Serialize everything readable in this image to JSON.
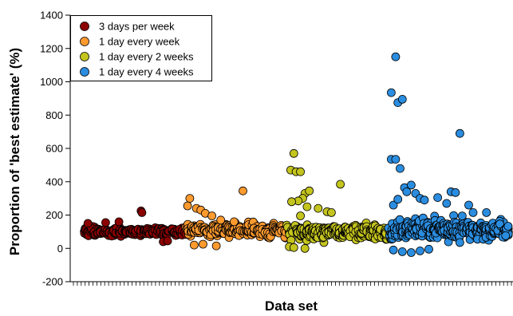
{
  "chart_data": {
    "type": "scatter",
    "title": "",
    "xlabel": "Data set",
    "ylabel": "Proportion of 'best estimate' (%)",
    "ylim": [
      -200,
      1400
    ],
    "yticks": [
      -200,
      0,
      200,
      400,
      600,
      800,
      1000,
      1200,
      1400
    ],
    "xlim": [
      0,
      100
    ],
    "x_tick_labels": "none",
    "grid": false,
    "legend_position": "top-left",
    "series": [
      {
        "name": "3 days per week",
        "color": "#8b0000",
        "x_range": [
          3,
          26
        ],
        "central": 100,
        "spread": 35,
        "points": [
          [
            16.0,
            225
          ],
          [
            16.2,
            215
          ],
          [
            11,
            160
          ],
          [
            4,
            150
          ],
          [
            8,
            155
          ],
          [
            21,
            40
          ],
          [
            22,
            45
          ]
        ]
      },
      {
        "name": "1 day every week",
        "color": "#ff9a2e",
        "x_range": [
          26,
          49
        ],
        "central": 110,
        "spread": 55,
        "points": [
          [
            27,
            300
          ],
          [
            26.5,
            255
          ],
          [
            28.5,
            240
          ],
          [
            29.5,
            230
          ],
          [
            30.5,
            210
          ],
          [
            32,
            195
          ],
          [
            39,
            345
          ],
          [
            37,
            160
          ],
          [
            34,
            170
          ],
          [
            28,
            20
          ],
          [
            30,
            25
          ],
          [
            33,
            15
          ]
        ]
      },
      {
        "name": "1 day every 2 weeks",
        "color": "#c4c41e",
        "x_range": [
          49,
          72
        ],
        "central": 100,
        "spread": 70,
        "points": [
          [
            50.5,
            570
          ],
          [
            49.8,
            470
          ],
          [
            51,
            460
          ],
          [
            52,
            460
          ],
          [
            53,
            330
          ],
          [
            54,
            345
          ],
          [
            52.5,
            300
          ],
          [
            51.5,
            285
          ],
          [
            50,
            280
          ],
          [
            53.5,
            250
          ],
          [
            61,
            385
          ],
          [
            56,
            240
          ],
          [
            58,
            220
          ],
          [
            59,
            215
          ],
          [
            52,
            195
          ],
          [
            49.5,
            10
          ],
          [
            50.5,
            5
          ],
          [
            53,
            0
          ]
        ]
      },
      {
        "name": "1 day every 4 weeks",
        "color": "#2a8de0",
        "x_range": [
          72,
          99
        ],
        "central": 110,
        "spread": 95,
        "points": [
          [
            73.5,
            1150
          ],
          [
            72.5,
            935
          ],
          [
            74,
            875
          ],
          [
            75,
            895
          ],
          [
            72.5,
            535
          ],
          [
            73.5,
            535
          ],
          [
            74.5,
            480
          ],
          [
            88,
            690
          ],
          [
            73,
            260
          ],
          [
            74,
            295
          ],
          [
            75.5,
            365
          ],
          [
            76,
            340
          ],
          [
            77,
            380
          ],
          [
            78,
            330
          ],
          [
            79,
            300
          ],
          [
            80,
            290
          ],
          [
            83,
            305
          ],
          [
            86,
            340
          ],
          [
            87,
            335
          ],
          [
            90,
            260
          ],
          [
            91,
            215
          ],
          [
            85,
            270
          ],
          [
            94,
            215
          ],
          [
            73,
            -10
          ],
          [
            75,
            -20
          ],
          [
            77,
            -25
          ],
          [
            79,
            -15
          ],
          [
            81,
            -5
          ]
        ]
      }
    ]
  }
}
